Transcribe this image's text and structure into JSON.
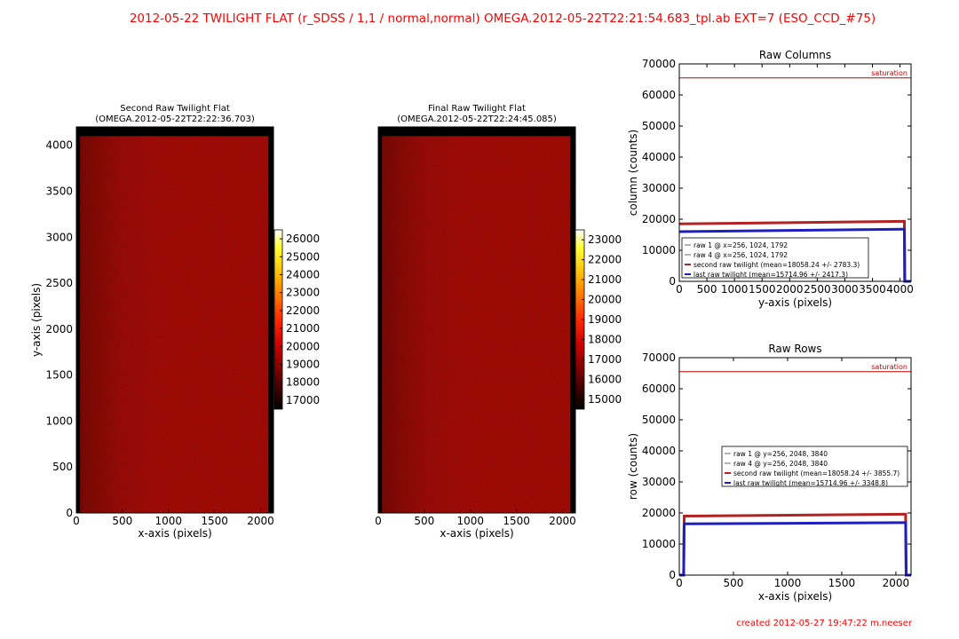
{
  "header": {
    "title": "2012-05-22   TWILIGHT FLAT   (r_SDSS / 1,1 / normal,normal)      OMEGA.2012-05-22T22:21:54.683_tpl.ab   EXT=7 (ESO_CCD_#75)",
    "footer": "created   2012-05-27    19:47:22   m.neeser"
  },
  "colors": {
    "title": "#ff0000",
    "second_series": "#b22222",
    "last_series": "#1f1fbf",
    "saturation": "#cc0000",
    "image_fill": "#b80d08"
  },
  "chart_data": [
    {
      "type": "heatmap",
      "title": "Second Raw Twilight Flat",
      "subtitle": "(OMEGA.2012-05-22T22:22:36.703)",
      "xlabel": "x-axis (pixels)",
      "ylabel": "y-axis (pixels)",
      "xlim": [
        0,
        2140
      ],
      "ylim": [
        0,
        4200
      ],
      "xticks": [
        0,
        500,
        1000,
        1500,
        2000
      ],
      "yticks": [
        0,
        500,
        1000,
        1500,
        2000,
        2500,
        3000,
        3500,
        4000
      ],
      "colorbar": {
        "ticks": [
          17000,
          18000,
          19000,
          20000,
          21000,
          22000,
          23000,
          24000,
          25000,
          26000
        ],
        "range": [
          16500,
          26500
        ]
      }
    },
    {
      "type": "heatmap",
      "title": "Final Raw Twilight Flat",
      "subtitle": "(OMEGA.2012-05-22T22:24:45.085)",
      "xlabel": "x-axis (pixels)",
      "ylabel": "",
      "xlim": [
        0,
        2140
      ],
      "ylim": [
        0,
        4200
      ],
      "xticks": [
        0,
        500,
        1000,
        1500,
        2000
      ],
      "colorbar": {
        "ticks": [
          15000,
          16000,
          17000,
          18000,
          19000,
          20000,
          21000,
          22000,
          23000
        ],
        "range": [
          14500,
          23500
        ]
      }
    },
    {
      "type": "line",
      "title": "Raw Columns",
      "xlabel": "y-axis (pixels)",
      "ylabel": "column (counts)",
      "xlim": [
        0,
        4200
      ],
      "ylim": [
        0,
        70000
      ],
      "xticks": [
        0,
        500,
        1000,
        1500,
        2000,
        2500,
        3000,
        3500,
        4000
      ],
      "yticks": [
        0,
        10000,
        20000,
        30000,
        40000,
        50000,
        60000,
        70000
      ],
      "saturation": {
        "value": 65500,
        "label": "saturation"
      },
      "legend_position": "lower-left",
      "series": [
        {
          "name": "raw 1 @ x=256, 1024, 1792",
          "color": "#444444",
          "x": [],
          "y": []
        },
        {
          "name": "raw 4 @ x=256, 1024, 1792",
          "color": "#444444",
          "x": [],
          "y": []
        },
        {
          "name": "second raw twilight (mean=18058.24 +/- 2783.3)",
          "color": "#b22222",
          "x": [
            0,
            4080,
            4085,
            4200
          ],
          "y": [
            18500,
            19300,
            0,
            0
          ]
        },
        {
          "name": "last raw twilight (mean=15714.96 +/- 2417.3)",
          "color": "#1f1fbf",
          "x": [
            0,
            4080,
            4085,
            4200
          ],
          "y": [
            16000,
            16800,
            0,
            0
          ]
        }
      ]
    },
    {
      "type": "line",
      "title": "Raw Rows",
      "xlabel": "x-axis (pixels)",
      "ylabel": "row (counts)",
      "xlim": [
        0,
        2140
      ],
      "ylim": [
        0,
        70000
      ],
      "xticks": [
        0,
        500,
        1000,
        1500,
        2000
      ],
      "yticks": [
        0,
        10000,
        20000,
        30000,
        40000,
        50000,
        60000,
        70000
      ],
      "saturation": {
        "value": 65500,
        "label": "saturation"
      },
      "legend_position": "center-right",
      "series": [
        {
          "name": "raw 1 @ y=256, 2048, 3840",
          "color": "#444444",
          "x": [],
          "y": []
        },
        {
          "name": "raw 4 @ y=256, 2048, 3840",
          "color": "#444444",
          "x": [],
          "y": []
        },
        {
          "name": "second raw twilight (mean=18058.24 +/- 3855.7)",
          "color": "#b22222",
          "x": [
            0,
            40,
            45,
            2090,
            2095,
            2140
          ],
          "y": [
            0,
            0,
            19000,
            19600,
            0,
            0
          ]
        },
        {
          "name": "last raw twilight (mean=15714.96 +/- 3348.8)",
          "color": "#1f1fbf",
          "x": [
            0,
            40,
            45,
            2090,
            2095,
            2140
          ],
          "y": [
            0,
            0,
            16500,
            16900,
            0,
            0
          ]
        }
      ]
    }
  ]
}
